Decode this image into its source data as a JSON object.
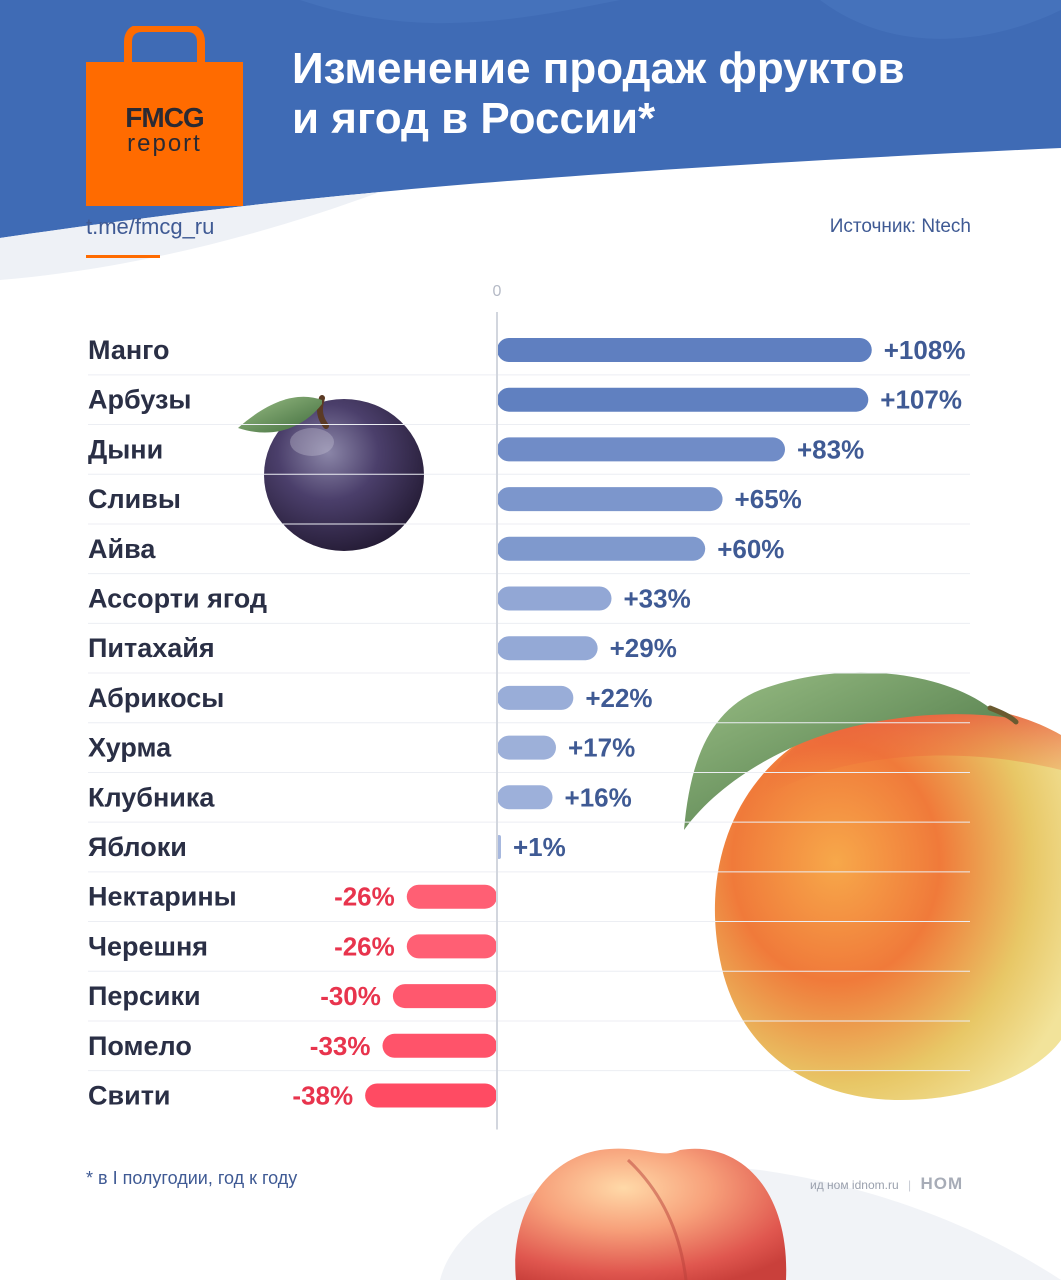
{
  "brand": {
    "name": "FMCG",
    "sub": "report",
    "color": "#ff6b00"
  },
  "header": {
    "title_line1": "Изменение продаж фруктов",
    "title_line2": "и ягод в России*",
    "bg_color": "#3f6bb5"
  },
  "telegram_link": "t.me/fmcg_ru",
  "source": "Источник: Ntech",
  "footnote": "* в I полугодии, год к году",
  "credit": {
    "text": "ид ном idnom.ru",
    "logo": "НОМ"
  },
  "chart_data": {
    "type": "bar",
    "orientation": "horizontal",
    "zero_label": "0",
    "unit": "%",
    "positive_color": "#5f7fc0",
    "negative_color": "#ff4b63",
    "categories": [
      "Манго",
      "Арбузы",
      "Дыни",
      "Сливы",
      "Айва",
      "Ассорти ягод",
      "Питахайя",
      "Абрикосы",
      "Хурма",
      "Клубника",
      "Яблоки",
      "Нектарины",
      "Черешня",
      "Персики",
      "Помело",
      "Свити"
    ],
    "values": [
      108,
      107,
      83,
      65,
      60,
      33,
      29,
      22,
      17,
      16,
      1,
      -26,
      -26,
      -30,
      -33,
      -38
    ],
    "labels": [
      "+108%",
      "+107%",
      "+83%",
      "+65%",
      "+60%",
      "+33%",
      "+29%",
      "+22%",
      "+17%",
      "+16%",
      "+1%",
      "-26%",
      "-26%",
      "-30%",
      "-33%",
      "-38%"
    ]
  },
  "illustrations": [
    "plum-image",
    "mango-image",
    "peach-image"
  ]
}
